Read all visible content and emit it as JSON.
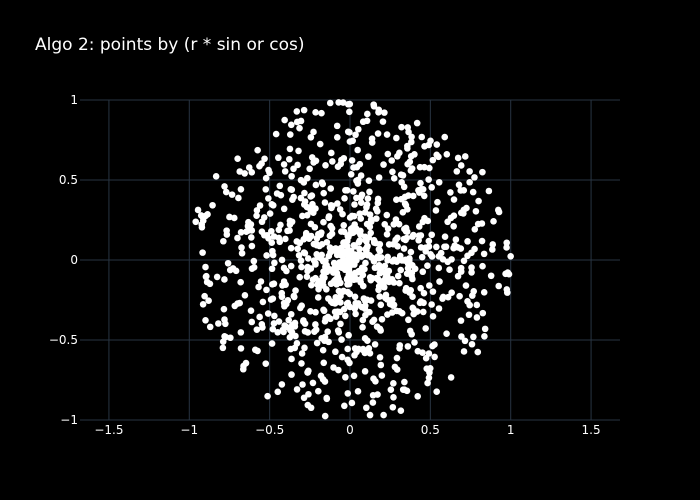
{
  "chart_data": {
    "type": "scatter",
    "title": "Algo 2: points by (r * sin or cos)",
    "xlabel": "",
    "ylabel": "",
    "xlim": [
      -1.68,
      1.68
    ],
    "ylim": [
      -1,
      1
    ],
    "x_ticks": [
      -1.5,
      -1,
      -0.5,
      0,
      0.5,
      1,
      1.5
    ],
    "x_tick_labels": [
      "−1.5",
      "−1",
      "−0.5",
      "0",
      "0.5",
      "1",
      "1.5"
    ],
    "y_ticks": [
      -1,
      -0.5,
      0,
      0.5,
      1
    ],
    "y_tick_labels": [
      "−1",
      "−0.5",
      "0",
      "0.5",
      "1"
    ],
    "grid": true,
    "marker_color": "#ffffff",
    "background": "#000000",
    "gridline_color": "#283442",
    "point_count": 1000,
    "radial_distribution": "r uniform in [0,1], angle uniform in [0, 2π]; points concentrate near the origin",
    "seed": 12345
  }
}
